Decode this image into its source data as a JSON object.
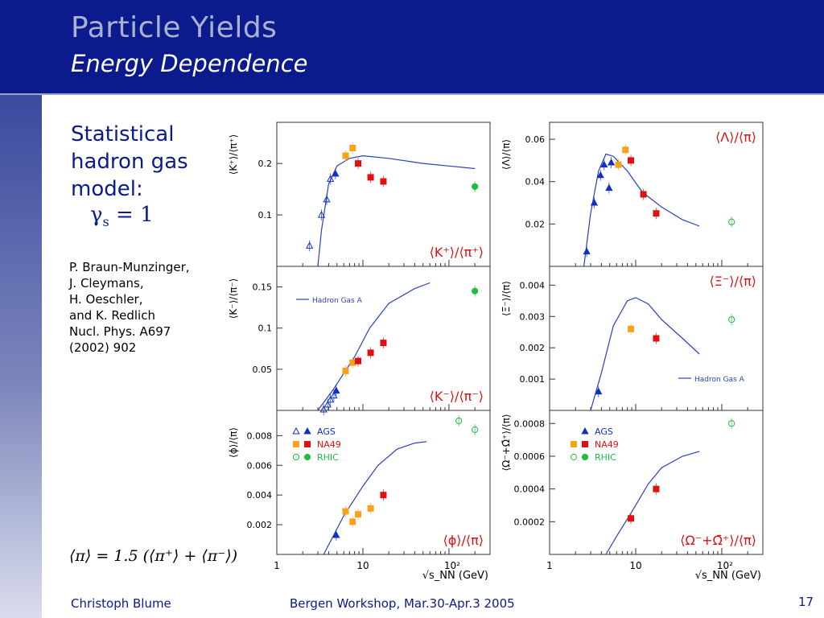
{
  "slide": {
    "title": "Particle Yields",
    "subtitle": "Energy Dependence",
    "heading_lines": [
      "Statistical",
      "hadron gas",
      "model:"
    ],
    "gamma_label": "γ",
    "gamma_sub": "s",
    "gamma_value": " = 1",
    "references": [
      "P. Braun-Munzinger,",
      "J. Cleymans,",
      "H. Oeschler,",
      "and K. Redlich",
      "Nucl. Phys. A697",
      "(2002) 902"
    ],
    "formula": "⟨π⟩ = 1.5 (⟨π⁺⟩ + ⟨π⁻⟩)",
    "footer_author": "Christoph Blume",
    "footer_event": "Bergen Workshop, Mar.30-Apr.3 2005",
    "page_number": "17"
  },
  "colors": {
    "header": "#0b1a8c",
    "ags": "#1030c0",
    "na49_orange": "#f7a21b",
    "na49_red": "#e01010",
    "rhic": "#22bb44",
    "model": "#2a3fbf"
  },
  "legend": [
    {
      "label": "AGS",
      "color": "#1030c0"
    },
    {
      "label": "NA49",
      "color": "#e01010"
    },
    {
      "label": "RHIC",
      "color": "#22bb44"
    }
  ],
  "model_legend": "Hadron Gas A",
  "x_axis": {
    "title": "√s_NN (GeV)",
    "ticks": [
      "1",
      "10",
      "10²"
    ]
  },
  "chart_data": [
    {
      "type": "scatter",
      "panel": "K+/pi+",
      "ylabel": "⟨K⁺⟩/⟨π⁺⟩",
      "label": "⟨K⁺⟩/⟨π⁺⟩",
      "xlim": [
        1,
        300
      ],
      "ylim": [
        0,
        0.28
      ],
      "yticks": [
        0.1,
        0.2
      ],
      "model": [
        [
          3.0,
          0
        ],
        [
          3.3,
          0.07
        ],
        [
          4.0,
          0.16
        ],
        [
          5.0,
          0.195
        ],
        [
          7,
          0.21
        ],
        [
          10,
          0.215
        ],
        [
          20,
          0.21
        ],
        [
          50,
          0.2
        ],
        [
          100,
          0.195
        ],
        [
          200,
          0.19
        ]
      ],
      "points": [
        {
          "x": 2.4,
          "y": 0.04,
          "set": "ags_open"
        },
        {
          "x": 3.3,
          "y": 0.1,
          "set": "ags_open"
        },
        {
          "x": 3.8,
          "y": 0.13,
          "set": "ags_open"
        },
        {
          "x": 4.2,
          "y": 0.17,
          "set": "ags_open"
        },
        {
          "x": 4.8,
          "y": 0.18,
          "set": "ags"
        },
        {
          "x": 6.3,
          "y": 0.215,
          "set": "na49_orange"
        },
        {
          "x": 7.6,
          "y": 0.23,
          "set": "na49_orange"
        },
        {
          "x": 8.8,
          "y": 0.2,
          "set": "na49_red"
        },
        {
          "x": 12.3,
          "y": 0.173,
          "set": "na49_red"
        },
        {
          "x": 17.3,
          "y": 0.165,
          "set": "na49_red"
        },
        {
          "x": 200,
          "y": 0.155,
          "set": "rhic"
        }
      ]
    },
    {
      "type": "scatter",
      "panel": "Lambda/pi",
      "ylabel": "⟨Λ⟩/⟨π⟩",
      "label": "⟨Λ⟩/⟨π⟩",
      "xlim": [
        1,
        300
      ],
      "ylim": [
        0,
        0.068
      ],
      "yticks": [
        0.02,
        0.04,
        0.06
      ],
      "model": [
        [
          2.5,
          0
        ],
        [
          3,
          0.025
        ],
        [
          3.7,
          0.045
        ],
        [
          4.5,
          0.053
        ],
        [
          5.5,
          0.052
        ],
        [
          8,
          0.045
        ],
        [
          12,
          0.035
        ],
        [
          20,
          0.028
        ],
        [
          35,
          0.022
        ],
        [
          55,
          0.019
        ]
      ],
      "points": [
        {
          "x": 2.7,
          "y": 0.007,
          "set": "ags"
        },
        {
          "x": 3.3,
          "y": 0.03,
          "set": "ags"
        },
        {
          "x": 3.9,
          "y": 0.043,
          "set": "ags"
        },
        {
          "x": 4.3,
          "y": 0.048,
          "set": "ags"
        },
        {
          "x": 4.9,
          "y": 0.037,
          "set": "ags"
        },
        {
          "x": 5.2,
          "y": 0.049,
          "set": "ags"
        },
        {
          "x": 6.3,
          "y": 0.048,
          "set": "na49_orange"
        },
        {
          "x": 7.6,
          "y": 0.055,
          "set": "na49_orange"
        },
        {
          "x": 8.8,
          "y": 0.05,
          "set": "na49_red"
        },
        {
          "x": 12.3,
          "y": 0.034,
          "set": "na49_red"
        },
        {
          "x": 17.3,
          "y": 0.025,
          "set": "na49_red"
        },
        {
          "x": 130,
          "y": 0.021,
          "set": "rhic_open"
        }
      ]
    },
    {
      "type": "scatter",
      "panel": "K-/pi-",
      "ylabel": "⟨K⁻⟩/⟨π⁻⟩",
      "label": "⟨K⁻⟩/⟨π⁻⟩",
      "xlim": [
        1,
        300
      ],
      "ylim": [
        0,
        0.175
      ],
      "yticks": [
        0.05,
        0.1,
        0.15
      ],
      "model": [
        [
          3,
          0
        ],
        [
          4.5,
          0.025
        ],
        [
          8,
          0.065
        ],
        [
          12,
          0.1
        ],
        [
          20,
          0.13
        ],
        [
          40,
          0.148
        ],
        [
          60,
          0.155
        ]
      ],
      "points": [
        {
          "x": 3.5,
          "y": 0.001,
          "set": "ags_open"
        },
        {
          "x": 3.9,
          "y": 0.007,
          "set": "ags_open"
        },
        {
          "x": 4.2,
          "y": 0.013,
          "set": "ags_open"
        },
        {
          "x": 4.6,
          "y": 0.018,
          "set": "ags_open"
        },
        {
          "x": 4.9,
          "y": 0.024,
          "set": "ags"
        },
        {
          "x": 6.3,
          "y": 0.048,
          "set": "na49_orange"
        },
        {
          "x": 7.6,
          "y": 0.058,
          "set": "na49_orange"
        },
        {
          "x": 8.8,
          "y": 0.06,
          "set": "na49_red"
        },
        {
          "x": 12.3,
          "y": 0.07,
          "set": "na49_red"
        },
        {
          "x": 17.3,
          "y": 0.082,
          "set": "na49_red"
        },
        {
          "x": 200,
          "y": 0.145,
          "set": "rhic"
        }
      ]
    },
    {
      "type": "scatter",
      "panel": "Xi/pi",
      "ylabel": "⟨Ξ⁻⟩/⟨π⟩",
      "label": "⟨Ξ⁻⟩/⟨π⟩",
      "xlim": [
        1,
        300
      ],
      "ylim": [
        0,
        0.0046
      ],
      "yticks": [
        0.001,
        0.002,
        0.003,
        0.004
      ],
      "model": [
        [
          3,
          0
        ],
        [
          4,
          0.0012
        ],
        [
          5.5,
          0.0027
        ],
        [
          8,
          0.0035
        ],
        [
          10,
          0.0036
        ],
        [
          14,
          0.0034
        ],
        [
          20,
          0.0029
        ],
        [
          35,
          0.0023
        ],
        [
          55,
          0.0018
        ]
      ],
      "points": [
        {
          "x": 3.7,
          "y": 0.0006,
          "set": "ags"
        },
        {
          "x": 8.8,
          "y": 0.0026,
          "set": "na49_orange"
        },
        {
          "x": 17.3,
          "y": 0.0023,
          "set": "na49_red"
        },
        {
          "x": 130,
          "y": 0.0029,
          "set": "rhic_open"
        }
      ]
    },
    {
      "type": "scatter",
      "panel": "phi/pi",
      "ylabel": "⟨ϕ⟩/⟨π⟩",
      "label": "⟨ϕ⟩/⟨π⟩",
      "xlim": [
        1,
        300
      ],
      "ylim": [
        0,
        0.0097
      ],
      "yticks": [
        0.002,
        0.004,
        0.006,
        0.008
      ],
      "model": [
        [
          3.5,
          0
        ],
        [
          6,
          0.0026
        ],
        [
          10,
          0.0046
        ],
        [
          15,
          0.006
        ],
        [
          25,
          0.0071
        ],
        [
          40,
          0.0075
        ],
        [
          55,
          0.0076
        ]
      ],
      "points": [
        {
          "x": 4.9,
          "y": 0.0013,
          "set": "ags"
        },
        {
          "x": 6.3,
          "y": 0.0029,
          "set": "na49_orange"
        },
        {
          "x": 7.6,
          "y": 0.0022,
          "set": "na49_orange"
        },
        {
          "x": 8.8,
          "y": 0.0027,
          "set": "na49_orange"
        },
        {
          "x": 12.3,
          "y": 0.0031,
          "set": "na49_orange"
        },
        {
          "x": 17.3,
          "y": 0.004,
          "set": "na49_red"
        },
        {
          "x": 130,
          "y": 0.009,
          "set": "rhic_open"
        },
        {
          "x": 200,
          "y": 0.0084,
          "set": "rhic_open"
        }
      ]
    },
    {
      "type": "scatter",
      "panel": "Omega/pi",
      "ylabel": "⟨Ω⁻+Ω̄⁺⟩/⟨π⟩",
      "label": "⟨Ω⁻+Ω̄⁺⟩/⟨π⟩",
      "xlim": [
        1,
        300
      ],
      "ylim": [
        0,
        0.00088
      ],
      "yticks": [
        0.0002,
        0.0004,
        0.0006,
        0.0008
      ],
      "model": [
        [
          4.5,
          0
        ],
        [
          6,
          0.00011
        ],
        [
          9,
          0.00026
        ],
        [
          14,
          0.00043
        ],
        [
          20,
          0.00053
        ],
        [
          35,
          0.0006
        ],
        [
          55,
          0.00063
        ]
      ],
      "points": [
        {
          "x": 8.8,
          "y": 0.00022,
          "set": "na49_red"
        },
        {
          "x": 17.3,
          "y": 0.0004,
          "set": "na49_red"
        },
        {
          "x": 130,
          "y": 0.0008,
          "set": "rhic_open"
        }
      ]
    }
  ]
}
